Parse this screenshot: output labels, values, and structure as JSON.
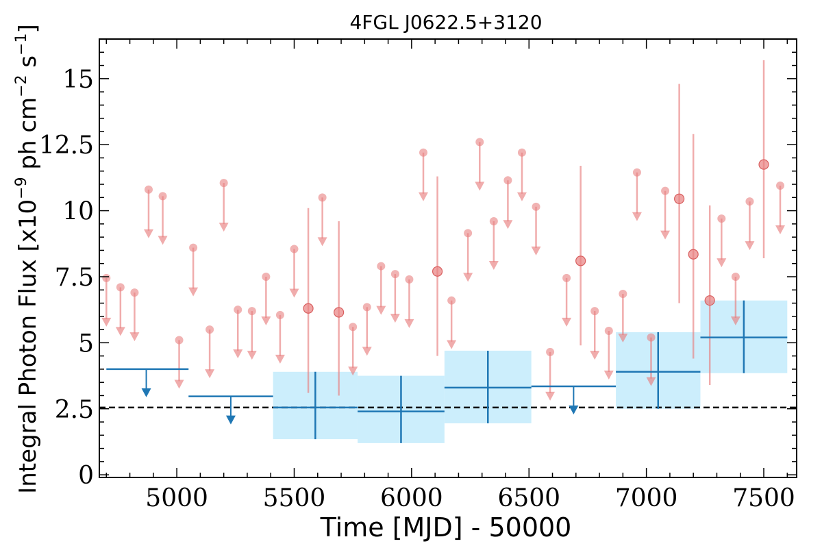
{
  "chart_data": {
    "type": "scatter",
    "title": "4FGL J0622.5+3120",
    "xlabel": "Time [MJD] - 50000",
    "ylabel_parts": {
      "main": "Integral Photon Flux [x10",
      "exp1": "−9",
      "mid": " ph cm",
      "exp2": "−2",
      "mid2": " s",
      "exp3": "−1",
      "end": "]"
    },
    "xlim": [
      4670,
      7640
    ],
    "ylim": [
      -0.1,
      16.5
    ],
    "xticks": [
      5000,
      5500,
      6000,
      6500,
      7000,
      7500
    ],
    "xtick_labels": [
      "5000",
      "5500",
      "6000",
      "6500",
      "7000",
      "7500"
    ],
    "yticks": [
      0,
      2.5,
      5,
      7.5,
      10,
      12.5,
      15
    ],
    "ytick_labels": [
      "0",
      "2.5",
      "5",
      "7.5",
      "10",
      "12.5",
      "15"
    ],
    "colors": {
      "fine": "#e88080",
      "coarse": "#1f77b4",
      "band": "#cceefc",
      "reference": "#000000"
    },
    "reference_line": {
      "y": 2.55,
      "style": "dashed"
    },
    "fine_upper_limits": [
      {
        "x": 4700,
        "y": 7.45
      },
      {
        "x": 4760,
        "y": 7.1
      },
      {
        "x": 4820,
        "y": 6.9
      },
      {
        "x": 4880,
        "y": 10.8
      },
      {
        "x": 4940,
        "y": 10.55
      },
      {
        "x": 5010,
        "y": 5.1
      },
      {
        "x": 5070,
        "y": 8.6
      },
      {
        "x": 5140,
        "y": 5.5
      },
      {
        "x": 5200,
        "y": 11.05
      },
      {
        "x": 5260,
        "y": 6.25
      },
      {
        "x": 5320,
        "y": 6.2
      },
      {
        "x": 5380,
        "y": 7.5
      },
      {
        "x": 5440,
        "y": 6.05
      },
      {
        "x": 5500,
        "y": 8.55
      },
      {
        "x": 5620,
        "y": 10.5
      },
      {
        "x": 5750,
        "y": 5.6
      },
      {
        "x": 5810,
        "y": 6.35
      },
      {
        "x": 5870,
        "y": 7.9
      },
      {
        "x": 5930,
        "y": 7.6
      },
      {
        "x": 5990,
        "y": 7.4
      },
      {
        "x": 6050,
        "y": 12.2
      },
      {
        "x": 6170,
        "y": 6.6
      },
      {
        "x": 6240,
        "y": 9.15
      },
      {
        "x": 6290,
        "y": 12.6
      },
      {
        "x": 6350,
        "y": 9.6
      },
      {
        "x": 6410,
        "y": 11.15
      },
      {
        "x": 6470,
        "y": 12.2
      },
      {
        "x": 6530,
        "y": 10.15
      },
      {
        "x": 6590,
        "y": 4.65
      },
      {
        "x": 6660,
        "y": 7.45
      },
      {
        "x": 6780,
        "y": 6.2
      },
      {
        "x": 6840,
        "y": 5.45
      },
      {
        "x": 6900,
        "y": 6.85
      },
      {
        "x": 6960,
        "y": 11.45
      },
      {
        "x": 7020,
        "y": 5.2
      },
      {
        "x": 7080,
        "y": 10.75
      },
      {
        "x": 7320,
        "y": 9.7
      },
      {
        "x": 7380,
        "y": 7.5
      },
      {
        "x": 7440,
        "y": 10.35
      },
      {
        "x": 7570,
        "y": 10.95
      }
    ],
    "fine_detections": [
      {
        "x": 5560,
        "y": 6.3,
        "ylo": 3.1,
        "yhi": 10.1
      },
      {
        "x": 5690,
        "y": 6.15,
        "ylo": 3.0,
        "yhi": 9.6
      },
      {
        "x": 6110,
        "y": 7.7,
        "ylo": 4.5,
        "yhi": 11.3
      },
      {
        "x": 6720,
        "y": 8.1,
        "ylo": 4.9,
        "yhi": 11.7
      },
      {
        "x": 7140,
        "y": 10.45,
        "ylo": 6.5,
        "yhi": 14.8
      },
      {
        "x": 7200,
        "y": 8.35,
        "ylo": 4.4,
        "yhi": 12.9
      },
      {
        "x": 7270,
        "y": 6.6,
        "ylo": 3.4,
        "yhi": 10.2
      },
      {
        "x": 7500,
        "y": 11.75,
        "ylo": 8.2,
        "yhi": 15.7
      }
    ],
    "coarse_upper_limits": [
      {
        "x0": 4700,
        "x1": 5050,
        "y": 4.0,
        "xc": 4870
      },
      {
        "x0": 5050,
        "x1": 5410,
        "y": 2.97,
        "xc": 5230
      },
      {
        "x0": 6510,
        "x1": 6870,
        "y": 3.35,
        "xc": 6690
      }
    ],
    "coarse_detections": [
      {
        "x0": 5410,
        "x1": 5770,
        "xc": 5590,
        "y": 2.55,
        "ylo": 1.35,
        "yhi": 3.9
      },
      {
        "x0": 5770,
        "x1": 6140,
        "xc": 5955,
        "y": 2.4,
        "ylo": 1.2,
        "yhi": 3.75
      },
      {
        "x0": 6140,
        "x1": 6510,
        "xc": 6325,
        "y": 3.3,
        "ylo": 1.95,
        "yhi": 4.7
      },
      {
        "x0": 6870,
        "x1": 7230,
        "xc": 7050,
        "y": 3.9,
        "ylo": 2.5,
        "yhi": 5.4
      },
      {
        "x0": 7230,
        "x1": 7600,
        "xc": 7415,
        "y": 5.2,
        "ylo": 3.85,
        "yhi": 6.6
      }
    ]
  }
}
